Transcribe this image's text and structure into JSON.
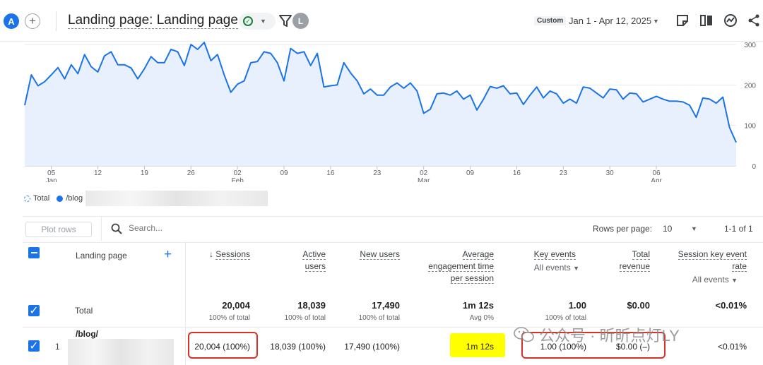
{
  "header": {
    "avatar": "A",
    "title": "Landing page: Landing page",
    "comparison_avatar": "L",
    "custom_badge": "Custom",
    "date_range": "Jan 1 - Apr 12, 2025"
  },
  "chart_data": {
    "type": "line",
    "series": [
      {
        "name": "/blog",
        "values": [
          150,
          225,
          198,
          208,
          225,
          243,
          215,
          250,
          228,
          275,
          245,
          232,
          272,
          282,
          250,
          250,
          242,
          215,
          240,
          270,
          255,
          255,
          288,
          282,
          248,
          300,
          288,
          305,
          260,
          275,
          225,
          182,
          202,
          210,
          255,
          258,
          282,
          278,
          255,
          210,
          290,
          278,
          282,
          248,
          278,
          195,
          198,
          200,
          255,
          230,
          210,
          178,
          190,
          175,
          175,
          195,
          205,
          192,
          205,
          185,
          130,
          140,
          178,
          180,
          175,
          185,
          165,
          175,
          138,
          165,
          196,
          192,
          198,
          178,
          180,
          152,
          175,
          195,
          168,
          185,
          178,
          155,
          165,
          155,
          195,
          192,
          180,
          168,
          190,
          188,
          165,
          180,
          178,
          158,
          165,
          172,
          165,
          160,
          160,
          158,
          150,
          120,
          168,
          165,
          155,
          170,
          95,
          58
        ]
      }
    ],
    "x_tick_labels": [
      "05",
      "12",
      "19",
      "26",
      "02",
      "09",
      "16",
      "23",
      "02",
      "09",
      "16",
      "23",
      "30",
      "06"
    ],
    "x_month_labels": [
      "Jan",
      "Feb",
      "Mar",
      "Apr"
    ],
    "y_tick_labels": [
      "300",
      "200",
      "100",
      "0"
    ],
    "ylim": [
      0,
      300
    ],
    "grid": true,
    "legend": [
      {
        "label": "Total"
      },
      {
        "label": "/blog"
      }
    ]
  },
  "toolbar": {
    "plot_rows_label": "Plot rows",
    "search_placeholder": "Search...",
    "rows_per_page_label": "Rows per page:",
    "rows_per_page_value": "10",
    "pagination": "1-1 of 1"
  },
  "table": {
    "dimension_header": "Landing page",
    "columns": [
      {
        "line1": "Sessions",
        "line2": "",
        "line3": ""
      },
      {
        "line1": "Active",
        "line2": "users",
        "line3": ""
      },
      {
        "line1": "New users",
        "line2": "",
        "line3": ""
      },
      {
        "line1": "Average",
        "line2": "engagement time",
        "line3": "per session"
      },
      {
        "line1": "Key events",
        "line2": "All events",
        "line3": ""
      },
      {
        "line1": "Total",
        "line2": "revenue",
        "line3": ""
      },
      {
        "line1": "Session key event",
        "line2": "rate",
        "line3": "All events"
      }
    ],
    "total_row": {
      "label": "Total",
      "values": [
        "20,004",
        "18,039",
        "17,490",
        "1m 12s",
        "1.00",
        "$0.00",
        "<0.01%"
      ],
      "subs": [
        "100% of total",
        "100% of total",
        "100% of total",
        "Avg 0%",
        "100% of total",
        "",
        ""
      ]
    },
    "rows": [
      {
        "index": "1",
        "landing_page": "/blog/",
        "values": [
          "20,004 (100%)",
          "18,039 (100%)",
          "17,490 (100%)",
          "1m 12s",
          "1.00 (100%)",
          "$0.00 (–)",
          "<0.01%"
        ]
      }
    ]
  },
  "watermark": "公众号 · 昕昕点灯LY",
  "colors": {
    "accent": "#1a73e8",
    "highlight": "#ffff00",
    "annotation": "#d93025"
  }
}
